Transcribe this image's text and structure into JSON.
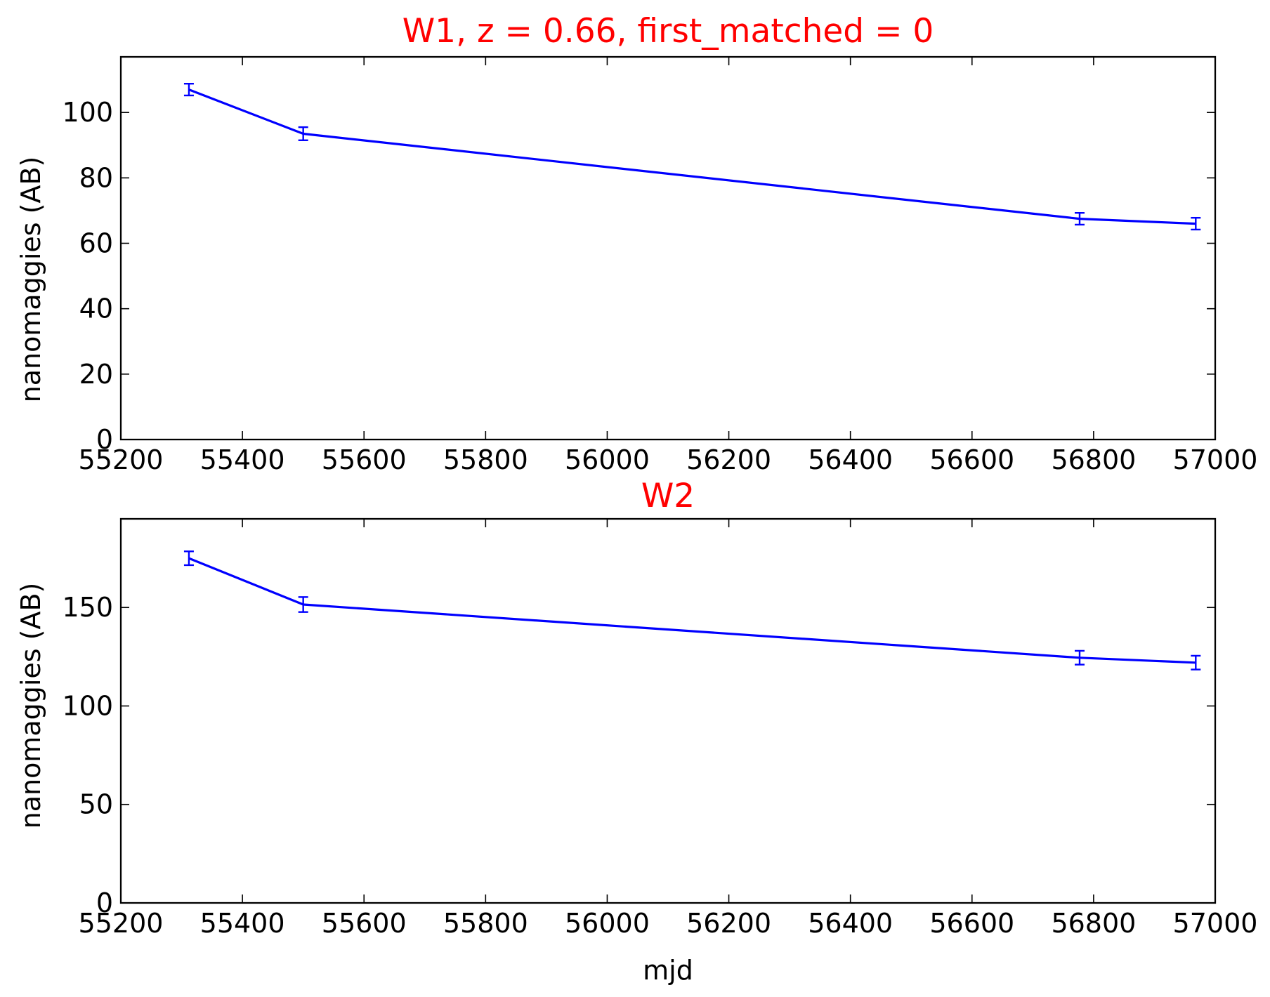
{
  "chart_data": [
    {
      "type": "line",
      "title": "W1, z = 0.66, first_matched = 0",
      "xlabel": "",
      "ylabel": "nanomaggies (AB)",
      "xlim": [
        55200,
        57000
      ],
      "ylim": [
        0,
        117
      ],
      "xticks": [
        "55200",
        "55400",
        "55600",
        "55800",
        "56000",
        "56200",
        "56400",
        "56600",
        "56800",
        "57000"
      ],
      "yticks": [
        "0",
        "20",
        "40",
        "60",
        "80",
        "100"
      ],
      "grid": false,
      "series": [
        {
          "x": [
            55312,
            55500,
            56777,
            56968
          ],
          "y": [
            107,
            93.5,
            67.5,
            66
          ],
          "yerr": [
            1.8,
            2.0,
            1.8,
            1.8
          ]
        }
      ]
    },
    {
      "type": "line",
      "title": "W2",
      "xlabel": "mjd",
      "ylabel": "nanomaggies (AB)",
      "xlim": [
        55200,
        57000
      ],
      "ylim": [
        0,
        195
      ],
      "xticks": [
        "55200",
        "55400",
        "55600",
        "55800",
        "56000",
        "56200",
        "56400",
        "56600",
        "56800",
        "57000"
      ],
      "yticks": [
        "0",
        "50",
        "100",
        "150"
      ],
      "grid": false,
      "series": [
        {
          "x": [
            55312,
            55500,
            56777,
            56968
          ],
          "y": [
            175,
            151.5,
            124.5,
            122
          ],
          "yerr": [
            3.5,
            3.8,
            3.5,
            3.5
          ]
        }
      ]
    }
  ],
  "colors": {
    "series": "#0000ff",
    "title": "#ff0000",
    "axes": "#000000"
  }
}
